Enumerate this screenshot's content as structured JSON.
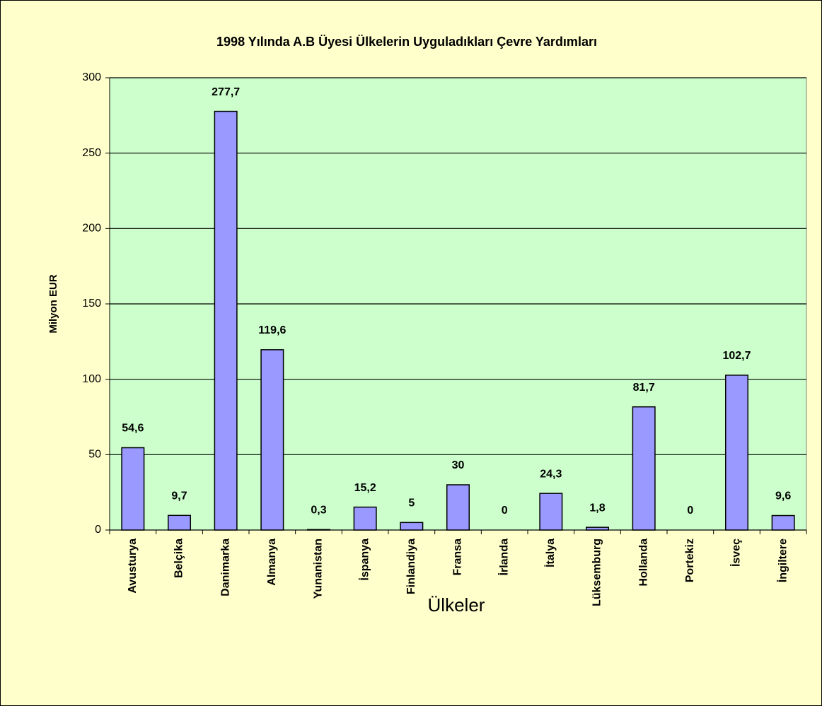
{
  "chart_data": {
    "type": "bar",
    "title": "1998 Yılında A.B Üyesi Ülkelerin Uyguladıkları Çevre Yardımları",
    "x_label": "Ülkeler",
    "y_label": "Milyon EUR",
    "categories": [
      "Avusturya",
      "Belçika",
      "Danimarka",
      "Almanya",
      "Yunanistan",
      "İspanya",
      "Finlandiya",
      "Fransa",
      "İrlanda",
      "İtalya",
      "Lüksemburg",
      "Hollanda",
      "Portekiz",
      "İsveç",
      "İngiltere"
    ],
    "values": [
      54.6,
      9.7,
      277.7,
      119.6,
      0.3,
      15.2,
      5,
      30,
      0,
      24.3,
      1.8,
      81.7,
      0,
      102.7,
      9.6
    ],
    "value_labels": [
      "54,6",
      "9,7",
      "277,7",
      "119,6",
      "0,3",
      "15,2",
      "5",
      "30",
      "0",
      "24,3",
      "1,8",
      "81,7",
      "0",
      "102,7",
      "9,6"
    ],
    "color": "#9999ff",
    "ylim": [
      0,
      300
    ],
    "yticks": [
      0,
      50,
      100,
      150,
      200,
      250,
      300
    ],
    "grid": true
  }
}
